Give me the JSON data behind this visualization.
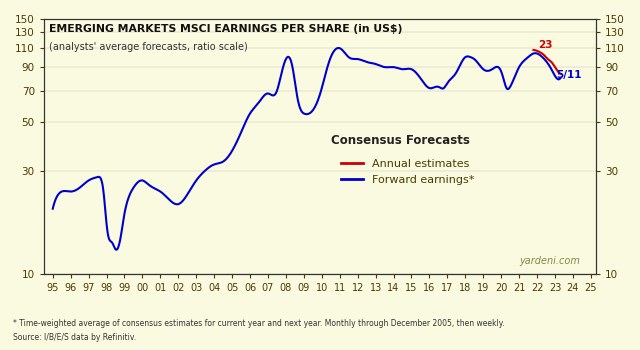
{
  "title_line1": "EMERGING MARKETS MSCI EARNINGS PER SHARE (in US$)",
  "title_line2": "(analysts' average forecasts, ratio scale)",
  "background_color": "#FAFAE0",
  "blue_color": "#0000CC",
  "red_color": "#CC0000",
  "text_color": "#4B3B00",
  "axis_color": "#333333",
  "ylim_log": [
    10,
    150
  ],
  "yticks": [
    10,
    30,
    50,
    70,
    90,
    110,
    130,
    150
  ],
  "xlabel_start": 1995,
  "xlabel_end": 2025,
  "footnote1": "* Time-weighted average of consensus estimates for current year and next year. Monthly through December 2005, then weekly.",
  "footnote2": "Source: I/B/E/S data by Refinitiv.",
  "watermark": "yardeni.com",
  "legend_title": "Consensus Forecasts",
  "legend_annual": "Annual estimates",
  "legend_forward": "Forward earnings*",
  "annotation_23": "23",
  "annotation_511": "5/11"
}
